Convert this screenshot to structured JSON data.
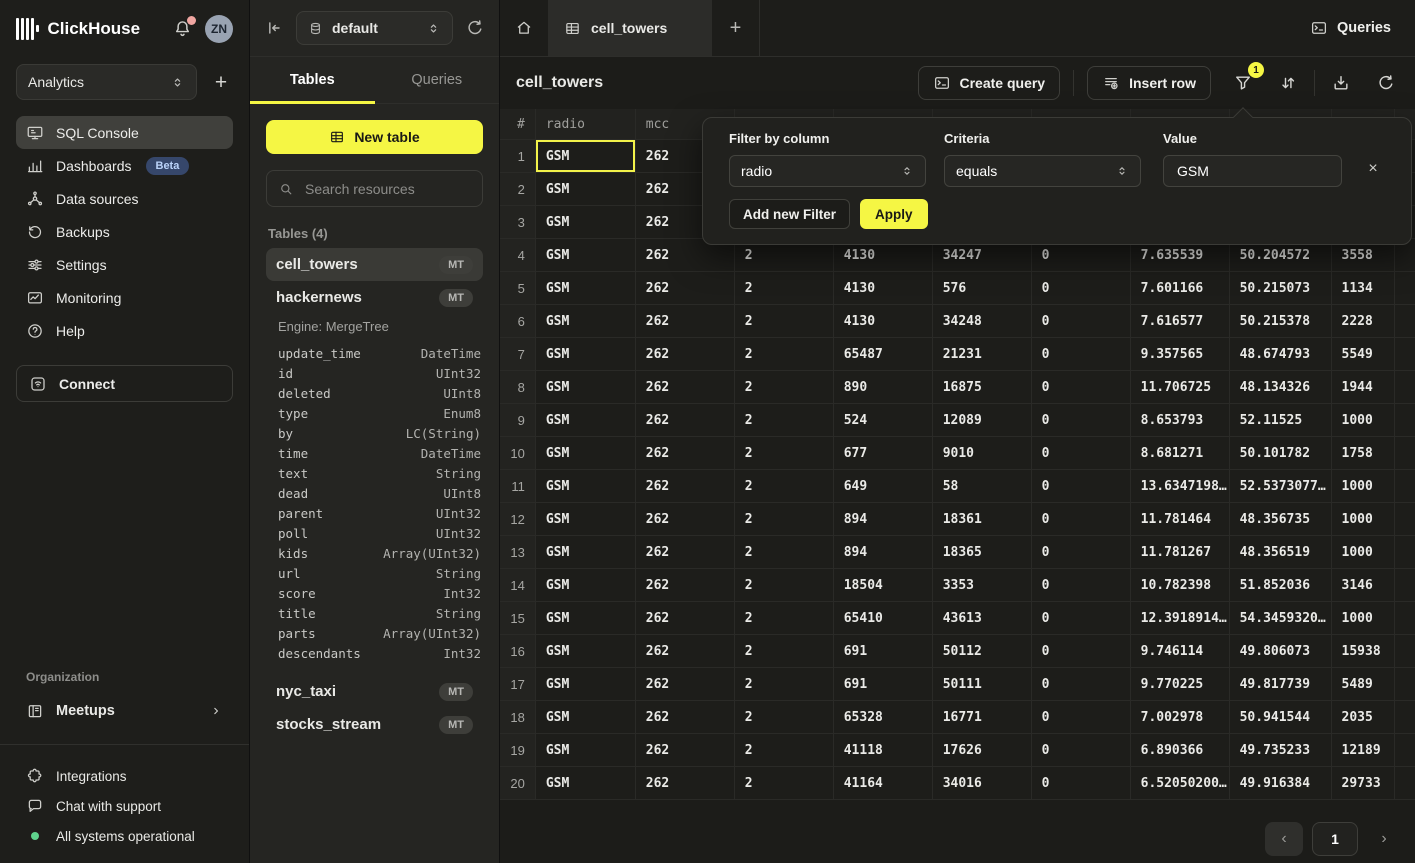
{
  "colors": {
    "accent_yellow": "#f5f644",
    "beta_badge_bg": "#36476b",
    "beta_badge_text": "#bad2f8",
    "status_green": "#5fd38d",
    "notification_dot": "#f0a6a1",
    "selected_cell_border": "#f2f24a"
  },
  "sidebar": {
    "brand": "ClickHouse",
    "avatar_initials": "ZN",
    "workspace": "Analytics",
    "nav": [
      {
        "label": "SQL Console",
        "icon": "sql-console",
        "active": true
      },
      {
        "label": "Dashboards",
        "icon": "dashboards",
        "badge": "Beta"
      },
      {
        "label": "Data sources",
        "icon": "data-sources"
      },
      {
        "label": "Backups",
        "icon": "backups"
      },
      {
        "label": "Settings",
        "icon": "settings"
      },
      {
        "label": "Monitoring",
        "icon": "monitoring"
      },
      {
        "label": "Help",
        "icon": "help"
      }
    ],
    "connect_label": "Connect",
    "organization_label": "Organization",
    "meetups_label": "Meetups",
    "footer": [
      {
        "label": "Integrations",
        "icon": "integrations"
      },
      {
        "label": "Chat with support",
        "icon": "chat"
      },
      {
        "label": "All systems operational",
        "icon": "status-dot"
      }
    ]
  },
  "explorer": {
    "database": "default",
    "tab_tables": "Tables",
    "tab_queries": "Queries",
    "new_table_label": "New table",
    "search_placeholder": "Search resources",
    "section_label": "Tables (4)",
    "tables": [
      {
        "name": "cell_towers",
        "badge": "MT",
        "active": true
      },
      {
        "name": "hackernews",
        "badge": "MT",
        "engine": "Engine: MergeTree",
        "columns": [
          {
            "name": "update_time",
            "type": "DateTime"
          },
          {
            "name": "id",
            "type": "UInt32"
          },
          {
            "name": "deleted",
            "type": "UInt8"
          },
          {
            "name": "type",
            "type": "Enum8"
          },
          {
            "name": "by",
            "type": "LC(String)"
          },
          {
            "name": "time",
            "type": "DateTime"
          },
          {
            "name": "text",
            "type": "String"
          },
          {
            "name": "dead",
            "type": "UInt8"
          },
          {
            "name": "parent",
            "type": "UInt32"
          },
          {
            "name": "poll",
            "type": "UInt32"
          },
          {
            "name": "kids",
            "type": "Array(UInt32)"
          },
          {
            "name": "url",
            "type": "String"
          },
          {
            "name": "score",
            "type": "Int32"
          },
          {
            "name": "title",
            "type": "String"
          },
          {
            "name": "parts",
            "type": "Array(UInt32)"
          },
          {
            "name": "descendants",
            "type": "Int32"
          }
        ]
      },
      {
        "name": "nyc_taxi",
        "badge": "MT"
      },
      {
        "name": "stocks_stream",
        "badge": "MT"
      }
    ]
  },
  "topbar": {
    "active_tab": "cell_towers",
    "queries_label": "Queries"
  },
  "main": {
    "title": "cell_towers",
    "create_query_label": "Create query",
    "insert_row_label": "Insert row",
    "filter_count": "1",
    "grid": {
      "headers": [
        "#",
        "radio",
        "mcc",
        "",
        "",
        "",
        "",
        "",
        "",
        "",
        ""
      ],
      "rows": [
        {
          "n": "1",
          "cells": [
            "GSM",
            "262",
            "",
            "",
            "",
            "",
            "",
            "",
            ""
          ],
          "selected_col": 0
        },
        {
          "n": "2",
          "cells": [
            "GSM",
            "262",
            "",
            "",
            "",
            "",
            "",
            "",
            ""
          ]
        },
        {
          "n": "3",
          "cells": [
            "GSM",
            "262",
            "",
            "",
            "",
            "",
            "",
            "",
            ""
          ]
        },
        {
          "n": "4",
          "cells": [
            "GSM",
            "262",
            "2",
            "4130",
            "34247",
            "0",
            "7.635539",
            "50.204572",
            "3558"
          ]
        },
        {
          "n": "5",
          "cells": [
            "GSM",
            "262",
            "2",
            "4130",
            "576",
            "0",
            "7.601166",
            "50.215073",
            "1134"
          ]
        },
        {
          "n": "6",
          "cells": [
            "GSM",
            "262",
            "2",
            "4130",
            "34248",
            "0",
            "7.616577",
            "50.215378",
            "2228"
          ]
        },
        {
          "n": "7",
          "cells": [
            "GSM",
            "262",
            "2",
            "65487",
            "21231",
            "0",
            "9.357565",
            "48.674793",
            "5549"
          ]
        },
        {
          "n": "8",
          "cells": [
            "GSM",
            "262",
            "2",
            "890",
            "16875",
            "0",
            "11.706725",
            "48.134326",
            "1944"
          ]
        },
        {
          "n": "9",
          "cells": [
            "GSM",
            "262",
            "2",
            "524",
            "12089",
            "0",
            "8.653793",
            "52.11525",
            "1000"
          ]
        },
        {
          "n": "10",
          "cells": [
            "GSM",
            "262",
            "2",
            "677",
            "9010",
            "0",
            "8.681271",
            "50.101782",
            "1758"
          ]
        },
        {
          "n": "11",
          "cells": [
            "GSM",
            "262",
            "2",
            "649",
            "58",
            "0",
            "13.6347198…",
            "52.5373077…",
            "1000"
          ]
        },
        {
          "n": "12",
          "cells": [
            "GSM",
            "262",
            "2",
            "894",
            "18361",
            "0",
            "11.781464",
            "48.356735",
            "1000"
          ]
        },
        {
          "n": "13",
          "cells": [
            "GSM",
            "262",
            "2",
            "894",
            "18365",
            "0",
            "11.781267",
            "48.356519",
            "1000"
          ]
        },
        {
          "n": "14",
          "cells": [
            "GSM",
            "262",
            "2",
            "18504",
            "3353",
            "0",
            "10.782398",
            "51.852036",
            "3146"
          ]
        },
        {
          "n": "15",
          "cells": [
            "GSM",
            "262",
            "2",
            "65410",
            "43613",
            "0",
            "12.3918914…",
            "54.3459320…",
            "1000"
          ]
        },
        {
          "n": "16",
          "cells": [
            "GSM",
            "262",
            "2",
            "691",
            "50112",
            "0",
            "9.746114",
            "49.806073",
            "15938"
          ]
        },
        {
          "n": "17",
          "cells": [
            "GSM",
            "262",
            "2",
            "691",
            "50111",
            "0",
            "9.770225",
            "49.817739",
            "5489"
          ]
        },
        {
          "n": "18",
          "cells": [
            "GSM",
            "262",
            "2",
            "65328",
            "16771",
            "0",
            "7.002978",
            "50.941544",
            "2035"
          ]
        },
        {
          "n": "19",
          "cells": [
            "GSM",
            "262",
            "2",
            "41118",
            "17626",
            "0",
            "6.890366",
            "49.735233",
            "12189"
          ]
        },
        {
          "n": "20",
          "cells": [
            "GSM",
            "262",
            "2",
            "41164",
            "34016",
            "0",
            "6.52050200…",
            "49.916384",
            "29733"
          ]
        }
      ]
    },
    "pagination": {
      "current_page": "1"
    }
  },
  "filter_popup": {
    "column_label": "Filter by column",
    "column_value": "radio",
    "criteria_label": "Criteria",
    "criteria_value": "equals",
    "value_label": "Value",
    "value": "GSM",
    "add_filter_label": "Add new Filter",
    "apply_label": "Apply"
  }
}
